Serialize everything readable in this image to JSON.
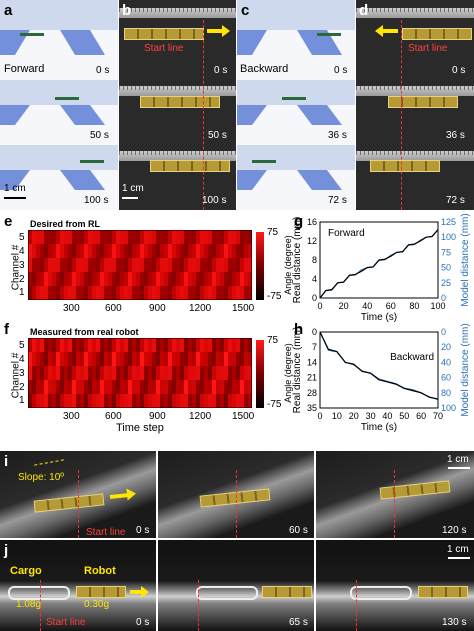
{
  "colors": {
    "red": "#e33030",
    "blue": "#2b6fb8",
    "yellow": "#ffe600",
    "sky": "#cfd9ee"
  },
  "panels": {
    "a": {
      "letter": "a",
      "label": "Forward",
      "times": [
        "0 s",
        "50 s",
        "100 s"
      ],
      "scale": "1 cm"
    },
    "b": {
      "letter": "b",
      "annotation": "Start line",
      "times": [
        "0 s",
        "50 s",
        "100 s"
      ],
      "scale": "1 cm"
    },
    "c": {
      "letter": "c",
      "label": "Backward",
      "times": [
        "0 s",
        "36 s",
        "72 s"
      ]
    },
    "d": {
      "letter": "d",
      "annotation": "Start line",
      "times": [
        "0 s",
        "36 s",
        "72 s"
      ]
    },
    "e": {
      "letter": "e",
      "title": "Desired from RL",
      "ylabel": "Channel #",
      "cbar_label": "Angle (degree)",
      "cbar_ticks": [
        "75",
        "-75"
      ],
      "yticks": [
        "5",
        "4",
        "3",
        "2",
        "1"
      ],
      "xticks": [
        "300",
        "600",
        "900",
        "1200",
        "1500"
      ]
    },
    "f": {
      "letter": "f",
      "title": "Measured from real robot",
      "ylabel": "Channel #",
      "xlabel": "Time step",
      "cbar_label": "Angle (degree)",
      "cbar_ticks": [
        "75",
        "-75"
      ],
      "yticks": [
        "5",
        "4",
        "3",
        "2",
        "1"
      ],
      "xticks": [
        "300",
        "600",
        "900",
        "1200",
        "1500"
      ]
    },
    "g": {
      "letter": "g",
      "legend": "Forward",
      "ylabel": "Real distance (mm)",
      "y2label": "Model distance (mm)",
      "xlabel": "Time (s)",
      "yticks": [
        "0",
        "4",
        "8",
        "12",
        "16"
      ],
      "y2ticks": [
        "0",
        "25",
        "50",
        "75",
        "100",
        "125"
      ],
      "xticks": [
        "0",
        "20",
        "40",
        "60",
        "80",
        "100"
      ]
    },
    "h": {
      "letter": "h",
      "legend": "Backward",
      "ylabel": "Real distance (mm)",
      "y2label": "Model distance (mm)",
      "xlabel": "Time (s)",
      "yticks": [
        "0",
        "7",
        "14",
        "21",
        "28",
        "35"
      ],
      "y2ticks": [
        "0",
        "20",
        "40",
        "60",
        "80",
        "100"
      ],
      "xticks": [
        "0",
        "10",
        "20",
        "30",
        "40",
        "50",
        "60",
        "70"
      ]
    },
    "i": {
      "letter": "i",
      "slope": "Slope: 10º",
      "annotation": "Start line",
      "times": [
        "0 s",
        "60 s",
        "120 s"
      ],
      "scale": "1 cm"
    },
    "j": {
      "letter": "j",
      "cargo": "Cargo",
      "robot": "Robot",
      "cargo_mass": "1.08g",
      "robot_mass": "0.30g",
      "annotation": "Start line",
      "times": [
        "0 s",
        "65 s",
        "130 s"
      ],
      "scale": "1 cm"
    }
  },
  "chart_data": [
    {
      "type": "line",
      "id": "g",
      "x": [
        0,
        5,
        10,
        15,
        20,
        25,
        30,
        35,
        40,
        45,
        50,
        55,
        60,
        65,
        70,
        75,
        80,
        85,
        90,
        95,
        100
      ],
      "series": [
        {
          "values": [
            0,
            2,
            2.2,
            4,
            4.2,
            6,
            6.2,
            7,
            8,
            8.2,
            10,
            10.2,
            11,
            12,
            12.2,
            14,
            14.2,
            15,
            16,
            16.2,
            18
          ]
        },
        {
          "values": [
            0,
            12,
            13,
            25,
            26,
            37,
            38,
            46,
            50,
            51,
            62,
            63,
            70,
            75,
            76,
            87,
            88,
            95,
            100,
            101,
            112
          ]
        }
      ],
      "xlim": [
        0,
        100
      ],
      "ylim": [
        0,
        20
      ],
      "y2lim": [
        0,
        125
      ]
    },
    {
      "type": "line",
      "id": "h",
      "x": [
        0,
        5,
        10,
        15,
        20,
        25,
        30,
        35,
        40,
        45,
        50,
        55,
        60,
        65,
        70
      ],
      "series": [
        {
          "values": [
            0,
            8,
            9,
            14,
            15,
            18,
            19,
            22,
            23,
            24,
            26,
            27,
            28,
            30,
            31
          ]
        },
        {
          "values": [
            0,
            24,
            26,
            40,
            42,
            52,
            54,
            62,
            65,
            68,
            74,
            76,
            80,
            86,
            88
          ]
        }
      ],
      "xlim": [
        0,
        70
      ],
      "ylim": [
        0,
        35
      ],
      "y2lim": [
        0,
        100
      ]
    }
  ]
}
